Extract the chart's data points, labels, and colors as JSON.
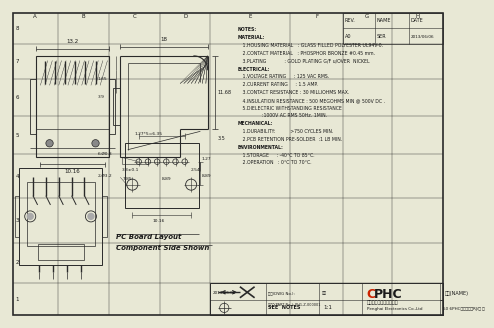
{
  "paper_color": "#e8e8d5",
  "line_color": "#2a2a2a",
  "text_color": "#1a1a1a",
  "grid_letters_top": [
    "A",
    "B",
    "C",
    "D",
    "E",
    "F",
    "G",
    "H"
  ],
  "grid_numbers_left": [
    "1",
    "2",
    "3",
    "4",
    "5",
    "6",
    "7",
    "8"
  ],
  "notes_lines": [
    "NOTES:",
    "MATERIAL:",
    "   1.HOUSING MATERIAL   : GLASS FILLED POLYESTER UL94V-0.",
    "   2.CONTACT MATERIAL   : PHOSPHOR BRONZE #0.45 mm.",
    "   3.PLATING            : GOLD PLATING G/F u/OVER  NICKEL",
    "ELECTRICAL:",
    "   1.VOLTAGE RATING     : 125 VAC RMS.",
    "   2.CURRENT RATING     : 1.5 AMP.",
    "   3.CONTACT RESISTANCE : 30 MILLIOHMS MAX.",
    "   4.INSULATION RESISTANCE : 500 MEGOHMS MIN @ 500V DC .",
    "   5.DIELECTRIC WITHSTANDING RESISTANCE",
    "                :1000V AC RMS 50Hz. 1MIN.",
    "MECHANICAL:",
    "   1.DURABILITY:          >750 CYCLES MIN.",
    "   2.PCB RETENTION PRE-SOLDER  :1 LB MIN.",
    "ENVIRONMENTAL:",
    "   1.STORAGE     : -40°C TO 85°C.",
    "   2.OPERATION   : 0°C TO 70°C."
  ],
  "bold_lines": [
    0,
    1,
    5,
    12,
    15
  ],
  "dim_13_2": "13.2",
  "dim_18": "18",
  "dim_10_16": "10.16",
  "dim_3_3": "3.3±0.1",
  "dim_7_85": "7.85",
  "dim_8_89": "8.89",
  "dim_11_68": "11.68",
  "dim_1_65": "1.65",
  "dim_3_9": "3.9",
  "dim_3_5": "3.5",
  "dim_2_54": "2.54",
  "dim_1_27_5": "1.27*5=6.35",
  "dim_1_27": "1.27",
  "dim_6_08": "6-Ø0.8",
  "dim_2_03": "2-Ø3.2",
  "dim_8_89b": "8.89",
  "dim_10_16b": "10.16",
  "company_name": "东菞市鹏海电子有限公司",
  "company_eng": "Penghai Electronics Co.,Ltd",
  "label_name": "名称(NAME)",
  "label_product": "50 6PHC嵌入式单口RJ/直 局",
  "label_drawing_no": "图号(DWG No.):",
  "label_part_no": "零件号(PART No.): PH1-Z-000001",
  "scale": "1:1",
  "pc_board_text1": "PC Board Layout",
  "pc_board_text2": "Component Side Shown",
  "date": "2013.06.06",
  "rev_label": "REV.",
  "name_label": "NAME",
  "date_label": "DATE",
  "rev_val": "A0",
  "name_val": "SER",
  "date_val": "2013/06/06"
}
